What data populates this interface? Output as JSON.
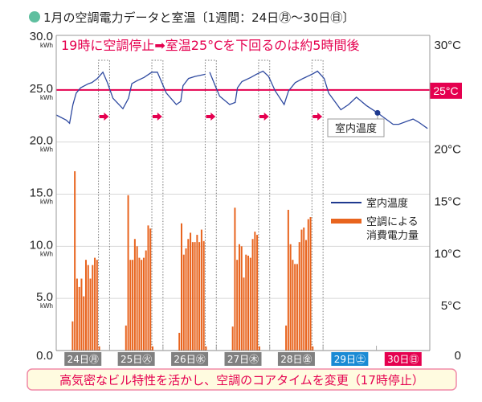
{
  "title": "1月の空調電力データと室温〔1週間：24日㊊〜30日㊐〕",
  "colors": {
    "title_dot": "#5fbf9f",
    "temperature": "#1f3a8f",
    "power": "#e8641e",
    "threshold": "#e5004f",
    "weekday_label": "#808080",
    "saturday_label": "#1a8ad4",
    "sunday_label": "#e5004f",
    "banner_fill": "#fffbe0"
  },
  "chart_data": {
    "type": "bar+line",
    "annotation": "19時に空調停止➡室温25°Cを下回るのは約5時間後",
    "left_axis": {
      "unit": "kWh",
      "ylim": [
        0,
        30
      ],
      "ticks": [
        "30.0",
        "25.0",
        "20.0",
        "15.0",
        "10.0",
        "5.0",
        "0.0"
      ],
      "tick_values": [
        30,
        25,
        20,
        15,
        10,
        5,
        0
      ]
    },
    "right_axis": {
      "ylim": [
        0,
        30
      ],
      "ticks": [
        "30°C",
        "25°C",
        "20°C",
        "15°C",
        "10°C",
        "5°C",
        "0"
      ],
      "tick_values": [
        30,
        25,
        20,
        15,
        10,
        5,
        0
      ]
    },
    "threshold": {
      "value": 25,
      "label": "25°C"
    },
    "days": [
      {
        "day": 24,
        "label": "24日㊊",
        "kind": "weekday"
      },
      {
        "day": 25,
        "label": "25日㊋",
        "kind": "weekday"
      },
      {
        "day": 26,
        "label": "26日㊌",
        "kind": "weekday"
      },
      {
        "day": 27,
        "label": "27日㊍",
        "kind": "weekday"
      },
      {
        "day": 28,
        "label": "28日㊎",
        "kind": "weekday"
      },
      {
        "day": 29,
        "label": "29日㊏",
        "kind": "saturday"
      },
      {
        "day": 30,
        "label": "30日㊐",
        "kind": "sunday"
      }
    ],
    "stop_window_hours": [
      19,
      24
    ],
    "grid": true,
    "legend": {
      "position": "right-middle",
      "items": [
        {
          "label": "室内温度",
          "kind": "line"
        },
        {
          "label_lines": [
            "空調による",
            "消費電力量"
          ],
          "kind": "bar"
        }
      ]
    },
    "power_series": {
      "name": "空調による消費電力量",
      "hours": [
        7,
        8,
        9,
        10,
        11,
        12,
        13,
        14,
        15,
        16,
        17,
        18,
        19
      ],
      "values_by_day": {
        "24": [
          2.8,
          17.2,
          6.9,
          6.1,
          6.9,
          5.2,
          8.7,
          8.2,
          6.9,
          8.2,
          8.9,
          8.7,
          0.4
        ],
        "25": [
          2.4,
          14.9,
          8.7,
          8.7,
          10.7,
          10.0,
          8.9,
          8.7,
          8.9,
          9.6,
          12.0,
          11.7,
          0.4
        ],
        "26": [
          1.7,
          12.2,
          9.2,
          9.8,
          10.7,
          11.3,
          10.4,
          10.4,
          11.1,
          10.4,
          11.6,
          10.5,
          0.4
        ],
        "27": [
          2.3,
          13.7,
          8.7,
          10.2,
          10.0,
          7.0,
          9.2,
          9.1,
          8.9,
          10.7,
          11.4,
          11.1,
          0.4
        ],
        "28": [
          2.4,
          13.5,
          10.2,
          8.7,
          8.3,
          8.3,
          10.4,
          11.6,
          11.8,
          10.6,
          12.6,
          12.8,
          0.4
        ]
      }
    },
    "temperature_series": {
      "name": "室内温度",
      "point_format": [
        "day",
        "hour",
        "°C"
      ],
      "segments": [
        [
          [
            24,
            0,
            22.6
          ],
          [
            24,
            4.5,
            22.1
          ],
          [
            24,
            6,
            21.8
          ],
          [
            24,
            7.5,
            23.6
          ],
          [
            24,
            9,
            24.7
          ],
          [
            24,
            11,
            25.2
          ],
          [
            24,
            14.5,
            25.6
          ],
          [
            24,
            16,
            25.7
          ],
          [
            24,
            18.5,
            26.1
          ],
          [
            24,
            21,
            26.7
          ],
          [
            24,
            23,
            25.7
          ],
          [
            25,
            1.5,
            24.2
          ],
          [
            25,
            6,
            23.2
          ],
          [
            25,
            8.5,
            24.2
          ],
          [
            25,
            10,
            25.6
          ],
          [
            25,
            12.5,
            25.9
          ],
          [
            25,
            15.5,
            26.2
          ],
          [
            25,
            19,
            26.7
          ],
          [
            25,
            21.5,
            26.7
          ],
          [
            25,
            23.5,
            25.7
          ],
          [
            26,
            1.5,
            24.7
          ],
          [
            26,
            6,
            23.6
          ],
          [
            26,
            8,
            23.9
          ],
          [
            26,
            9,
            25.4
          ],
          [
            26,
            11.5,
            26.1
          ],
          [
            26,
            14.5,
            26.3
          ],
          [
            26,
            19,
            26.5
          ]
        ],
        [
          [
            26,
            21,
            26.7
          ],
          [
            26,
            23.5,
            25.4
          ],
          [
            27,
            1.5,
            24.4
          ],
          [
            27,
            6,
            23.6
          ],
          [
            27,
            8.5,
            23.8
          ],
          [
            27,
            9.5,
            25.2
          ],
          [
            27,
            11.5,
            25.8
          ],
          [
            27,
            15.5,
            26.2
          ],
          [
            27,
            18,
            26.5
          ],
          [
            27,
            21,
            26.8
          ],
          [
            27,
            23.5,
            26.3
          ],
          [
            28,
            2.5,
            24.9
          ],
          [
            28,
            6.5,
            23.6
          ],
          [
            28,
            8.5,
            24.9
          ],
          [
            28,
            11.5,
            25.7
          ],
          [
            28,
            15,
            26.1
          ],
          [
            28,
            19,
            26.5
          ],
          [
            28,
            21.5,
            26.8
          ],
          [
            29,
            0.5,
            26.1
          ],
          [
            29,
            2.5,
            24.7
          ],
          [
            29,
            8,
            23.1
          ],
          [
            29,
            11.5,
            23.6
          ],
          [
            29,
            15,
            24.3
          ],
          [
            29,
            19.5,
            23.5
          ],
          [
            30,
            0.5,
            22.8
          ],
          [
            30,
            7.5,
            21.7
          ],
          [
            30,
            10,
            21.7
          ],
          [
            30,
            16.5,
            22.2
          ],
          [
            30,
            19,
            21.9
          ],
          [
            30,
            23,
            21.3
          ]
        ]
      ],
      "marker": {
        "day": 30,
        "hour": 0.5,
        "value": 22.8,
        "label": "室内温度"
      }
    }
  },
  "banner": "高気密なビル特性を活かし、空調のコアタイムを変更（17時停止）"
}
